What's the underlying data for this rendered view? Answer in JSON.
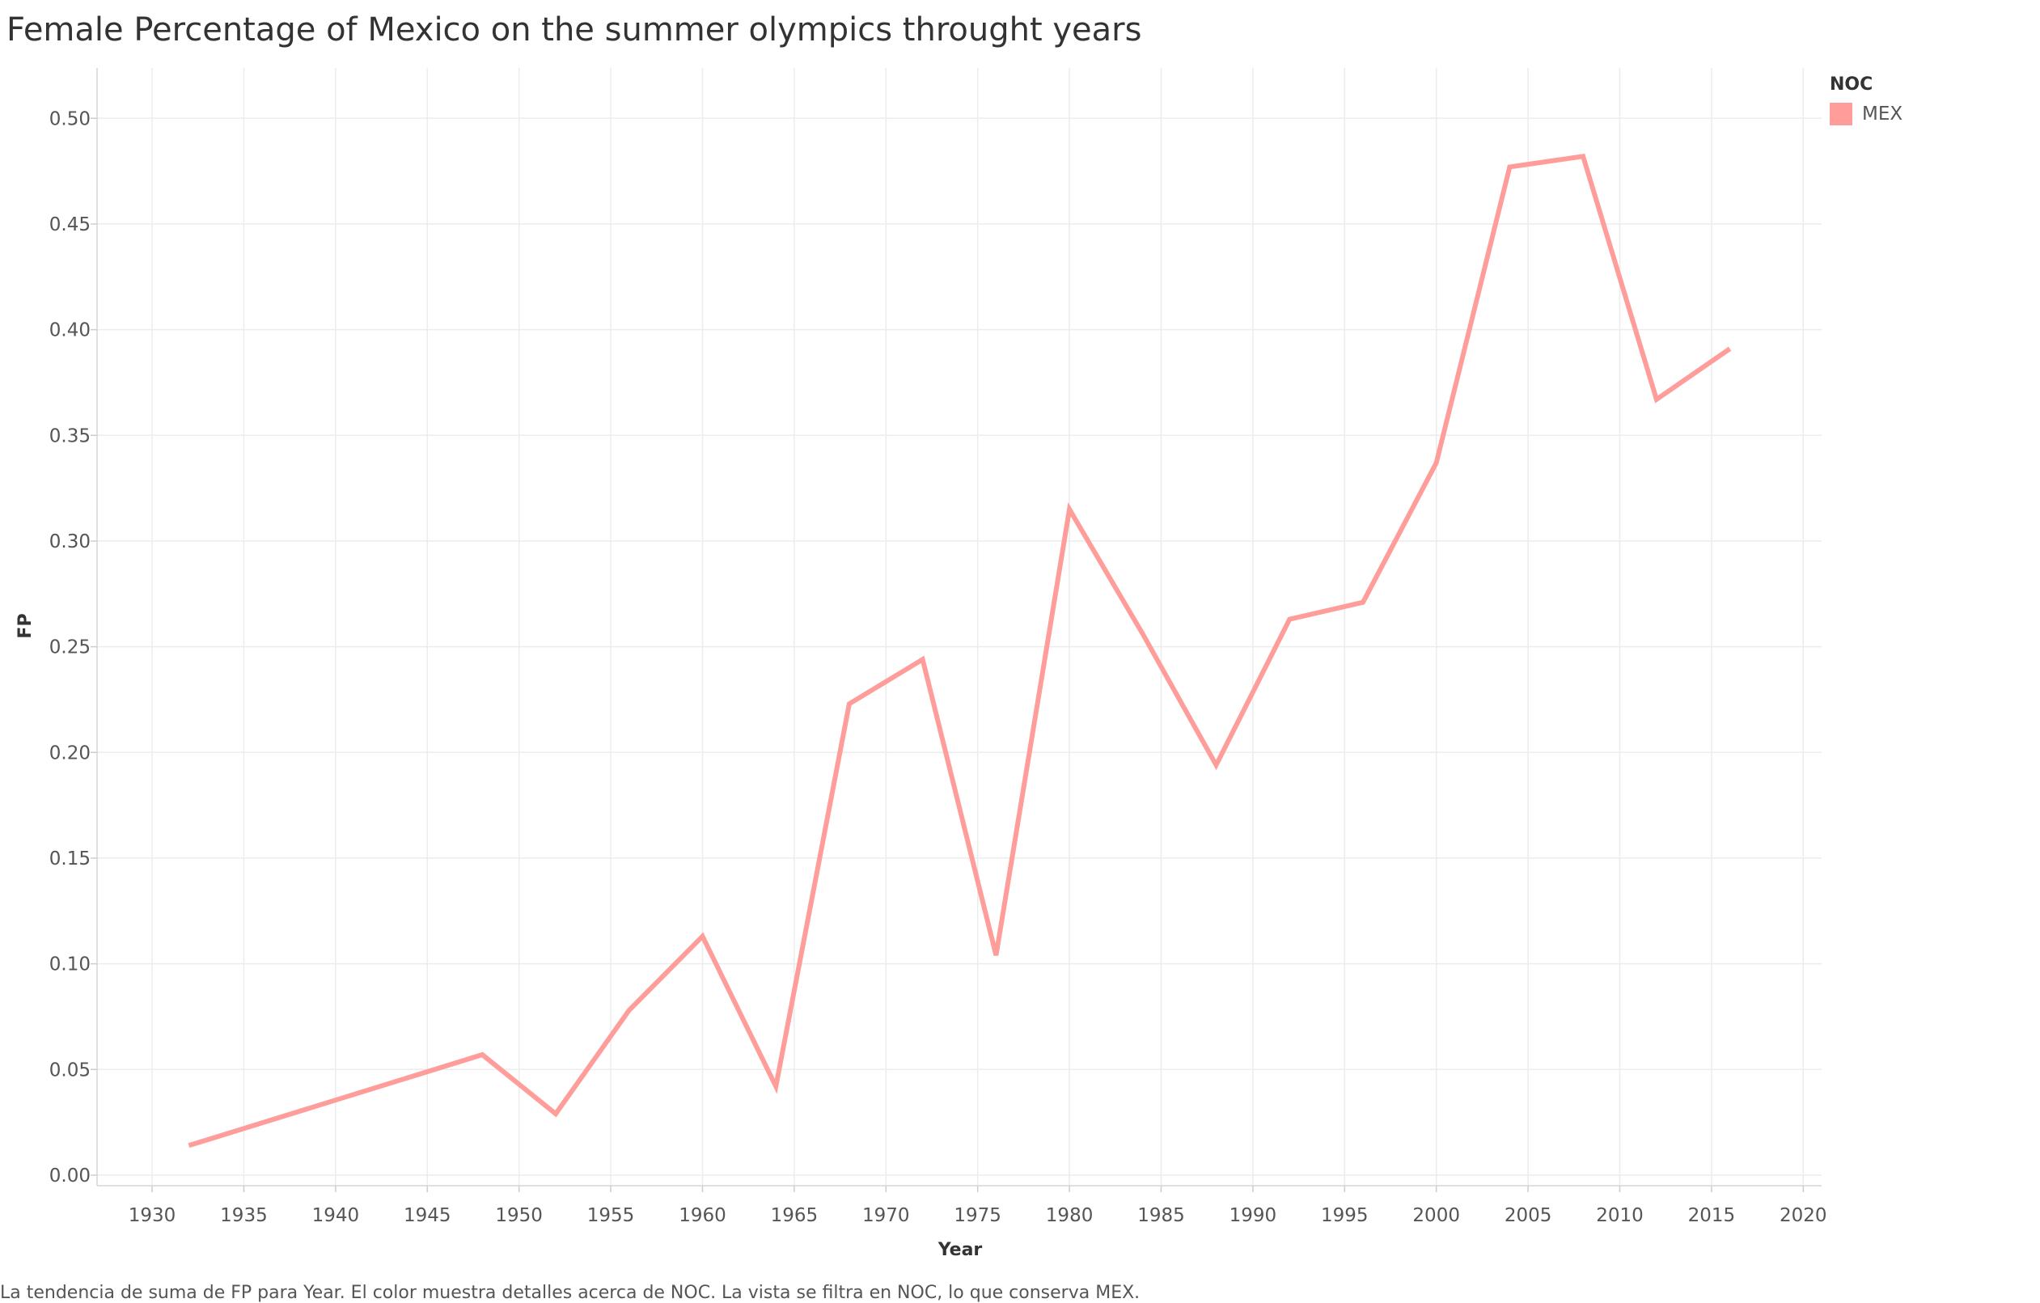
{
  "title": "Female Percentage of Mexico on the summer olympics throught years",
  "caption": "La tendencia de suma de FP para Year.  El color muestra detalles acerca de NOC. La vista se filtra en NOC, lo que conserva MEX.",
  "legend": {
    "title": "NOC",
    "items": [
      {
        "label": "MEX",
        "color": "#ff9d9a"
      }
    ]
  },
  "chart_data": {
    "type": "line",
    "xlabel": "Year",
    "ylabel": "FP",
    "xlim": [
      1927,
      2021
    ],
    "ylim": [
      -0.005,
      0.52
    ],
    "xticks": [
      1930,
      1935,
      1940,
      1945,
      1950,
      1955,
      1960,
      1965,
      1970,
      1975,
      1980,
      1985,
      1990,
      1995,
      2000,
      2005,
      2010,
      2015,
      2020
    ],
    "yticks": [
      0.0,
      0.05,
      0.1,
      0.15,
      0.2,
      0.25,
      0.3,
      0.35,
      0.4,
      0.45,
      0.5
    ],
    "ytick_labels": [
      "0.00",
      "0.05",
      "0.10",
      "0.15",
      "0.20",
      "0.25",
      "0.30",
      "0.35",
      "0.40",
      "0.45",
      "0.50"
    ],
    "grid": true,
    "legend_position": "top-right",
    "series": [
      {
        "name": "MEX",
        "color": "#ff9d9a",
        "x": [
          1932,
          1948,
          1952,
          1956,
          1960,
          1964,
          1968,
          1972,
          1976,
          1980,
          1984,
          1988,
          1992,
          1996,
          2000,
          2004,
          2008,
          2012,
          2016
        ],
        "y": [
          0.014,
          0.057,
          0.029,
          0.078,
          0.113,
          0.042,
          0.223,
          0.244,
          0.104,
          0.315,
          0.256,
          0.194,
          0.263,
          0.271,
          0.337,
          0.477,
          0.482,
          0.367,
          0.391
        ]
      }
    ]
  }
}
